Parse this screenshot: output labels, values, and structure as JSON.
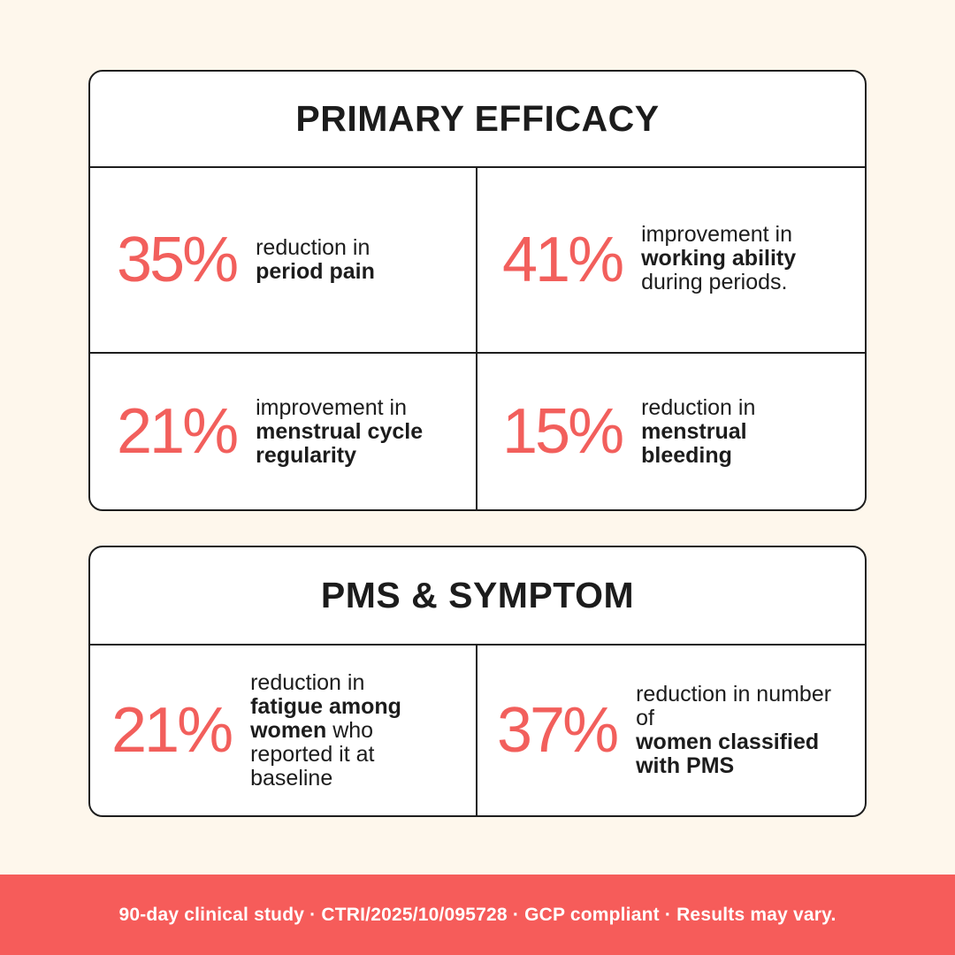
{
  "colors": {
    "background": "#FEF7EC",
    "accent": "#F25F5C",
    "footer_background": "#F65C5A",
    "border": "#1e1e1e",
    "text": "#1c1c1c"
  },
  "primary": {
    "title": "PRIMARY EFFICACY",
    "stats": [
      {
        "value": "35%",
        "line1": "reduction in",
        "bold": "period pain",
        "tail": ""
      },
      {
        "value": "41%",
        "line1": "improvement in",
        "bold": "working ability",
        "tail": "during periods."
      },
      {
        "value": "21%",
        "line1": "improvement in",
        "bold": "menstrual cycle regularity",
        "tail": ""
      },
      {
        "value": "15%",
        "line1": "reduction in",
        "bold": "menstrual bleeding",
        "tail": ""
      }
    ]
  },
  "pms": {
    "title": "PMS & SYMPTOM",
    "stats": [
      {
        "value": "21%",
        "line1": "reduction in",
        "bold": "fatigue among women",
        "tail": "who reported it at baseline"
      },
      {
        "value": "37%",
        "line1": "reduction in number of",
        "bold": "women classified with PMS",
        "tail": ""
      }
    ]
  },
  "footer": {
    "text": "90-day clinical study · CTRI/2025/10/095728 · GCP compliant · Results may vary."
  }
}
